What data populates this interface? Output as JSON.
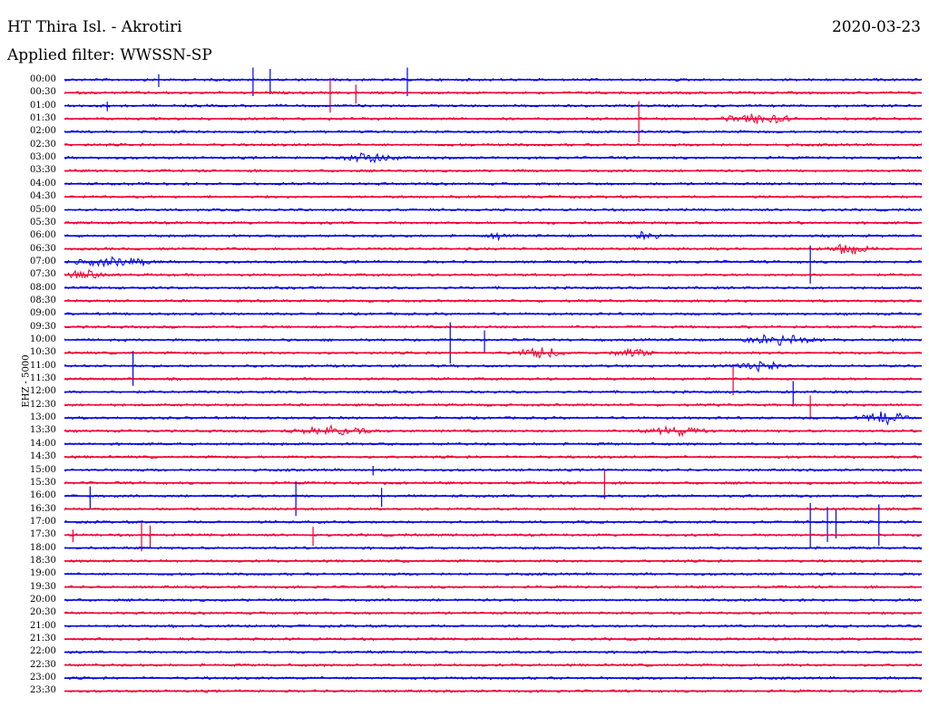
{
  "header": {
    "title": "HT Thira Isl. - Akrotiri",
    "date": "2020-03-23",
    "filter": "Applied filter: WWSSN-SP"
  },
  "channel": "EHZ - 5000",
  "colors": {
    "blue": "#0000ee",
    "red": "#ee0033"
  },
  "chart_data": {
    "type": "line",
    "title": "HT Thira Isl. - Akrotiri",
    "subtitle": "Applied filter: WWSSN-SP",
    "xlabel": "",
    "ylabel": "EHZ - 5000",
    "categories": [
      "00:00",
      "00:30",
      "01:00",
      "01:30",
      "02:00",
      "02:30",
      "03:00",
      "03:30",
      "04:00",
      "04:30",
      "05:00",
      "05:30",
      "06:00",
      "06:30",
      "07:00",
      "07:30",
      "08:00",
      "08:30",
      "09:00",
      "09:30",
      "10:00",
      "10:30",
      "11:00",
      "11:30",
      "12:00",
      "12:30",
      "13:00",
      "13:30",
      "14:00",
      "14:30",
      "15:00",
      "15:30",
      "16:00",
      "16:30",
      "17:00",
      "17:30",
      "18:00",
      "18:30",
      "19:00",
      "19:30",
      "20:00",
      "20:30",
      "21:00",
      "21:30",
      "22:00",
      "22:30",
      "23:00",
      "23:30"
    ],
    "series": [
      {
        "colorCycle": [
          "blue",
          "red"
        ]
      }
    ],
    "events": [
      {
        "row": 0,
        "pos": 0.11,
        "amp": 8,
        "type": "spike"
      },
      {
        "row": 0,
        "pos": 0.22,
        "amp": 18,
        "type": "spike"
      },
      {
        "row": 0,
        "pos": 0.24,
        "amp": 16,
        "type": "spike"
      },
      {
        "row": 0,
        "pos": 0.4,
        "amp": 18,
        "type": "spike"
      },
      {
        "row": 1,
        "pos": 0.31,
        "amp": 22,
        "type": "spike"
      },
      {
        "row": 1,
        "pos": 0.34,
        "amp": 12,
        "type": "spike"
      },
      {
        "row": 2,
        "pos": 0.05,
        "amp": 6,
        "type": "spike"
      },
      {
        "row": 3,
        "pos": 0.67,
        "amp": 26,
        "type": "spike"
      },
      {
        "row": 3,
        "pos": 0.76,
        "amp": 5,
        "type": "burst",
        "width": 0.1
      },
      {
        "row": 6,
        "pos": 0.31,
        "amp": 5,
        "type": "burst",
        "width": 0.09
      },
      {
        "row": 12,
        "pos": 0.49,
        "amp": 3,
        "type": "burst",
        "width": 0.03
      },
      {
        "row": 12,
        "pos": 0.66,
        "amp": 4,
        "type": "burst",
        "width": 0.04
      },
      {
        "row": 13,
        "pos": 0.88,
        "amp": 5,
        "type": "burst",
        "width": 0.07
      },
      {
        "row": 14,
        "pos": 0.0,
        "amp": 4,
        "type": "burst",
        "width": 0.12
      },
      {
        "row": 14,
        "pos": 0.87,
        "amp": 24,
        "type": "spike"
      },
      {
        "row": 15,
        "pos": 0.0,
        "amp": 4,
        "type": "burst",
        "width": 0.05
      },
      {
        "row": 20,
        "pos": 0.45,
        "amp": 26,
        "type": "spike"
      },
      {
        "row": 20,
        "pos": 0.49,
        "amp": 14,
        "type": "spike"
      },
      {
        "row": 20,
        "pos": 0.78,
        "amp": 5,
        "type": "burst",
        "width": 0.11
      },
      {
        "row": 21,
        "pos": 0.52,
        "amp": 5,
        "type": "burst",
        "width": 0.07
      },
      {
        "row": 21,
        "pos": 0.63,
        "amp": 4,
        "type": "burst",
        "width": 0.07
      },
      {
        "row": 22,
        "pos": 0.08,
        "amp": 22,
        "type": "spike"
      },
      {
        "row": 22,
        "pos": 0.78,
        "amp": 5,
        "type": "burst",
        "width": 0.06
      },
      {
        "row": 23,
        "pos": 0.78,
        "amp": 18,
        "type": "spike"
      },
      {
        "row": 24,
        "pos": 0.85,
        "amp": 16,
        "type": "spike"
      },
      {
        "row": 25,
        "pos": 0.87,
        "amp": 14,
        "type": "spike"
      },
      {
        "row": 26,
        "pos": 0.92,
        "amp": 6,
        "type": "burst",
        "width": 0.07
      },
      {
        "row": 27,
        "pos": 0.25,
        "amp": 4,
        "type": "burst",
        "width": 0.12
      },
      {
        "row": 27,
        "pos": 0.66,
        "amp": 4,
        "type": "burst",
        "width": 0.1
      },
      {
        "row": 30,
        "pos": 0.36,
        "amp": 6,
        "type": "spike"
      },
      {
        "row": 31,
        "pos": 0.63,
        "amp": 18,
        "type": "spike"
      },
      {
        "row": 32,
        "pos": 0.03,
        "amp": 14,
        "type": "spike"
      },
      {
        "row": 32,
        "pos": 0.27,
        "amp": 22,
        "type": "spike"
      },
      {
        "row": 32,
        "pos": 0.37,
        "amp": 12,
        "type": "spike"
      },
      {
        "row": 34,
        "pos": 0.87,
        "amp": 28,
        "type": "spike"
      },
      {
        "row": 34,
        "pos": 0.89,
        "amp": 22,
        "type": "spike"
      },
      {
        "row": 34,
        "pos": 0.9,
        "amp": 18,
        "type": "spike"
      },
      {
        "row": 34,
        "pos": 0.95,
        "amp": 26,
        "type": "spike"
      },
      {
        "row": 35,
        "pos": 0.01,
        "amp": 8,
        "type": "spike"
      },
      {
        "row": 35,
        "pos": 0.09,
        "amp": 18,
        "type": "spike"
      },
      {
        "row": 35,
        "pos": 0.1,
        "amp": 14,
        "type": "spike"
      },
      {
        "row": 35,
        "pos": 0.29,
        "amp": 12,
        "type": "spike"
      },
      {
        "row": 42,
        "pos": 0.11,
        "amp": 2,
        "type": "burst",
        "width": 0.02
      }
    ]
  }
}
